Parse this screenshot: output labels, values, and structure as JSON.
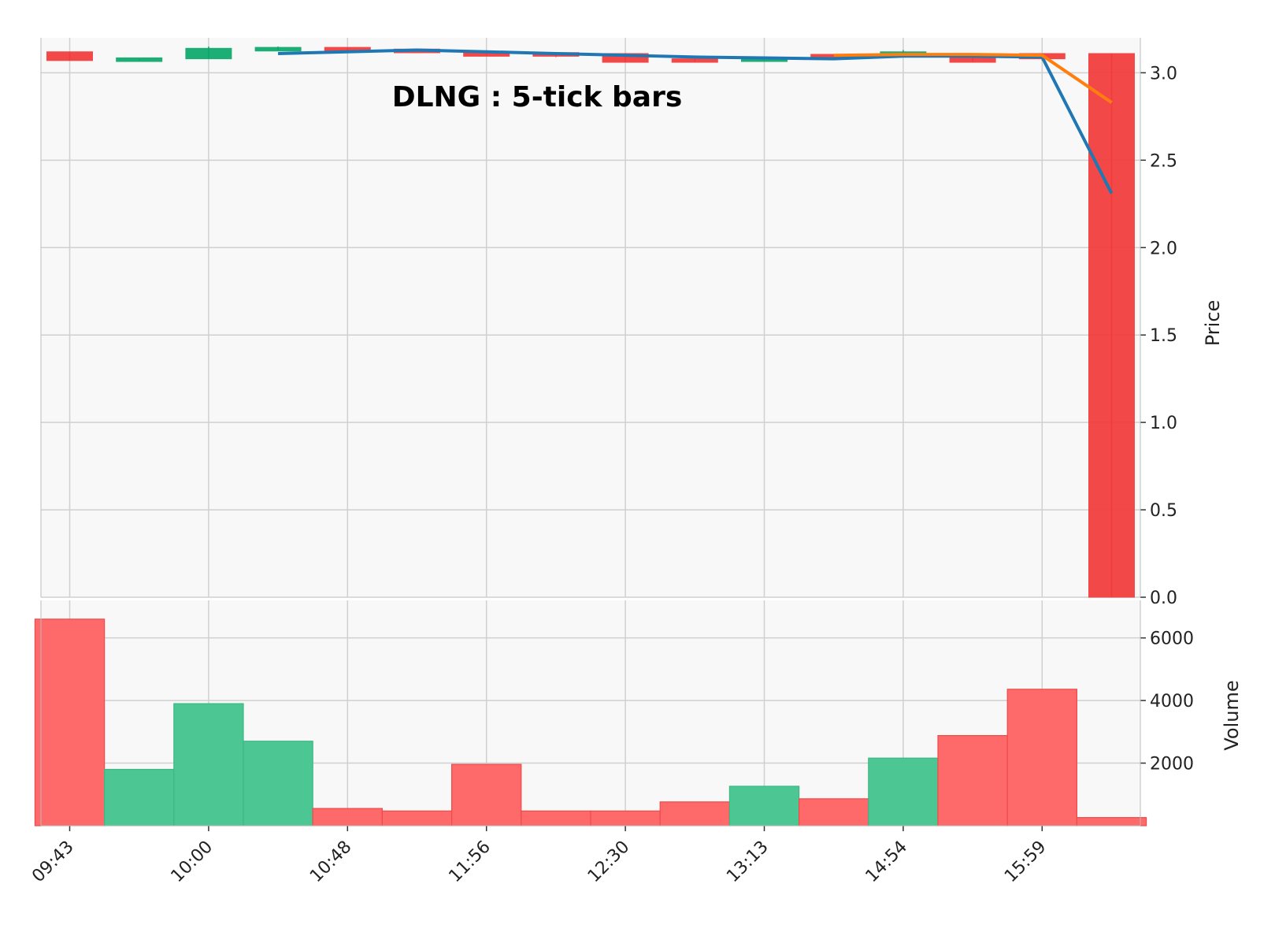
{
  "chart_data": {
    "type": "candlestick",
    "title": "DLNG : 5-tick bars",
    "price_axis": {
      "label": "Price",
      "ylim": [
        0,
        3.2
      ],
      "ticks": [
        "0.0",
        "0.5",
        "1.0",
        "1.5",
        "2.0",
        "2.5",
        "3.0"
      ]
    },
    "volume_axis": {
      "label": "Volume",
      "ylim": [
        0,
        7200
      ],
      "ticks": [
        "2000",
        "4000",
        "6000"
      ]
    },
    "x_tick_labels": [
      "09:43",
      "10:00",
      "10:48",
      "11:56",
      "12:30",
      "13:13",
      "14:54",
      "15:59"
    ],
    "grid": true,
    "colors": {
      "up": "#0aa86a",
      "down": "#f23a3a",
      "up_volume": "#4cc692",
      "down_volume": "#fe6a6a",
      "ma_blue": "#1f77b4",
      "ma_orange": "#ff7f0e",
      "panel_bg": "#f8f8f8",
      "grid": "#d0d0d0"
    },
    "candles": [
      {
        "open": 3.12,
        "high": 3.12,
        "low": 3.07,
        "close": 3.07
      },
      {
        "open": 3.07,
        "high": 3.08,
        "low": 3.07,
        "close": 3.08
      },
      {
        "open": 3.08,
        "high": 3.15,
        "low": 3.08,
        "close": 3.14
      },
      {
        "open": 3.13,
        "high": 3.15,
        "low": 3.13,
        "close": 3.14
      },
      {
        "open": 3.14,
        "high": 3.14,
        "low": 3.13,
        "close": 3.13
      },
      {
        "open": 3.13,
        "high": 3.13,
        "low": 3.12,
        "close": 3.12
      },
      {
        "open": 3.11,
        "high": 3.11,
        "low": 3.1,
        "close": 3.1
      },
      {
        "open": 3.11,
        "high": 3.11,
        "low": 3.09,
        "close": 3.1
      },
      {
        "open": 3.11,
        "high": 3.11,
        "low": 3.06,
        "close": 3.06
      },
      {
        "open": 3.08,
        "high": 3.08,
        "low": 3.06,
        "close": 3.06
      },
      {
        "open": 3.07,
        "high": 3.08,
        "low": 3.07,
        "close": 3.08
      },
      {
        "open": 3.1,
        "high": 3.1,
        "low": 3.08,
        "close": 3.09
      },
      {
        "open": 3.1,
        "high": 3.13,
        "low": 3.1,
        "close": 3.12
      },
      {
        "open": 3.1,
        "high": 3.1,
        "low": 3.06,
        "close": 3.06
      },
      {
        "open": 3.11,
        "high": 3.11,
        "low": 3.07,
        "close": 3.08
      },
      {
        "open": 3.11,
        "high": 3.11,
        "low": 0.0,
        "close": 0.0
      }
    ],
    "volume": [
      6600,
      1800,
      3900,
      2700,
      550,
      470,
      1960,
      470,
      470,
      760,
      1260,
      860,
      2160,
      2880,
      4360,
      260
    ],
    "ma_blue": [
      null,
      null,
      null,
      3.11,
      3.12,
      3.13,
      3.12,
      3.11,
      3.1,
      3.09,
      3.085,
      3.08,
      3.095,
      3.095,
      3.09,
      2.31
    ],
    "ma_orange": [
      null,
      null,
      null,
      null,
      null,
      null,
      null,
      null,
      null,
      null,
      null,
      3.1,
      3.105,
      3.105,
      3.1,
      2.83
    ]
  }
}
